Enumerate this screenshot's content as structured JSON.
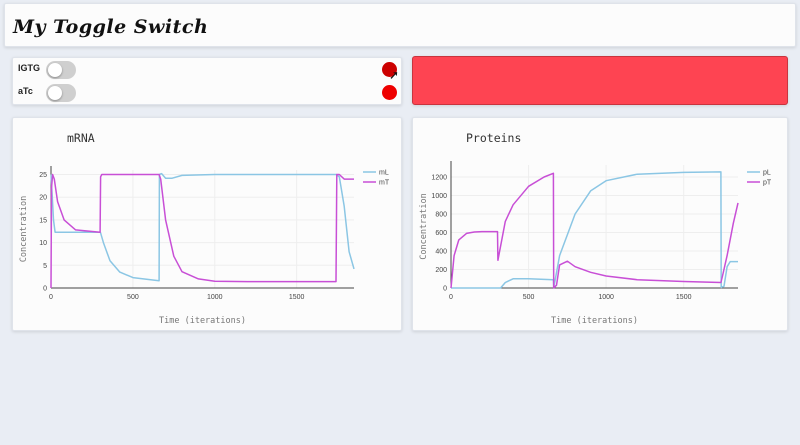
{
  "app": {
    "title": "My Toggle Switch"
  },
  "controls": [
    {
      "label": "IGTG",
      "on": false,
      "indicator_color": "#cc0000"
    },
    {
      "label": "aTc",
      "on": false,
      "indicator_color": "#ee0000"
    }
  ],
  "state_panel": {
    "color": "#fe4452"
  },
  "colors": {
    "series_L": "#8bc6e4",
    "series_T": "#c84fd6",
    "grid": "#eeeeee"
  },
  "chart_data": [
    {
      "type": "line",
      "title": "mRNA",
      "xlabel": "Time (iterations)",
      "ylabel": "Concentration",
      "xlim": [
        0,
        1850
      ],
      "ylim": [
        0,
        26
      ],
      "xticks": [
        0,
        500,
        1000,
        1500
      ],
      "yticks": [
        0,
        5,
        10,
        15,
        20,
        25
      ],
      "legend": "top-right",
      "series": [
        {
          "name": "mL",
          "x": [
            0,
            3,
            8,
            15,
            25,
            300,
            302,
            320,
            360,
            420,
            500,
            660,
            662,
            675,
            700,
            740,
            800,
            1000,
            1740,
            1742,
            1760,
            1790,
            1820,
            1850
          ],
          "y": [
            25,
            23,
            20,
            15,
            12.3,
            12.3,
            12.2,
            10,
            6,
            3.5,
            2.3,
            1.6,
            25,
            25.2,
            24.2,
            24.2,
            24.8,
            25,
            25,
            25,
            24.5,
            18,
            8,
            4.2
          ]
        },
        {
          "name": "mT",
          "x": [
            0,
            3,
            10,
            20,
            40,
            80,
            150,
            300,
            303,
            310,
            660,
            670,
            700,
            750,
            800,
            900,
            1000,
            1200,
            1740,
            1745,
            1760,
            1790,
            1850
          ],
          "y": [
            0,
            22,
            25,
            24,
            19,
            15,
            12.8,
            12.3,
            24.5,
            25,
            25,
            24,
            15,
            7,
            3.6,
            2,
            1.5,
            1.4,
            1.4,
            25,
            25,
            24,
            24
          ]
        }
      ]
    },
    {
      "type": "line",
      "title": "Proteins",
      "xlabel": "Time (iterations)",
      "ylabel": "Concentration",
      "xlim": [
        0,
        1850
      ],
      "ylim": [
        0,
        1330
      ],
      "xticks": [
        0,
        500,
        1000,
        1500
      ],
      "yticks": [
        0,
        200,
        400,
        600,
        800,
        1000,
        1200
      ],
      "legend": "top-right",
      "series": [
        {
          "name": "pL",
          "x": [
            0,
            300,
            302,
            320,
            350,
            400,
            500,
            660,
            662,
            700,
            800,
            900,
            1000,
            1200,
            1500,
            1740,
            1742,
            1760,
            1780,
            1800,
            1850
          ],
          "y": [
            0,
            0,
            0,
            0,
            60,
            100,
            100,
            90,
            0,
            350,
            800,
            1050,
            1160,
            1230,
            1250,
            1255,
            5,
            20,
            230,
            285,
            285
          ]
        },
        {
          "name": "pT",
          "x": [
            0,
            20,
            50,
            100,
            150,
            200,
            300,
            302,
            350,
            400,
            500,
            600,
            660,
            662,
            680,
            700,
            750,
            800,
            900,
            1000,
            1200,
            1500,
            1740,
            1750,
            1780,
            1820,
            1850
          ],
          "y": [
            0,
            350,
            520,
            590,
            605,
            610,
            610,
            300,
            720,
            900,
            1100,
            1200,
            1240,
            0,
            30,
            250,
            290,
            230,
            170,
            130,
            90,
            70,
            60,
            130,
            350,
            700,
            920
          ]
        }
      ]
    }
  ]
}
